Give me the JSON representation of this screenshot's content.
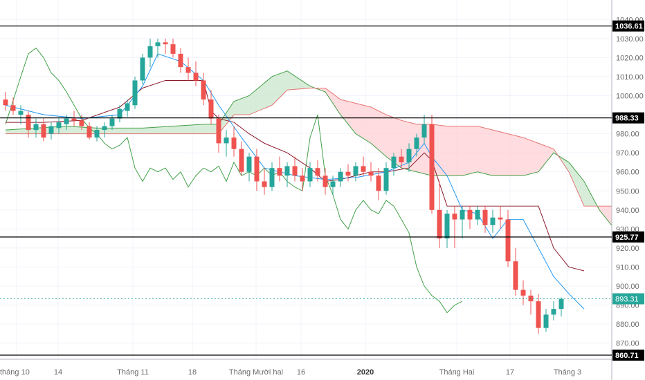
{
  "colors": {
    "up": "#26a69a",
    "down": "#ef5350",
    "conversion_line": "#2196f3",
    "base_line": "#8b1a2b",
    "lagging_span": "#43a047",
    "leading_span_a": "#43a047",
    "leading_span_b": "#e57373",
    "cloud_bull": "#c8e6c9",
    "cloud_bear": "#ffcdd2",
    "horizontal_line": "#000000",
    "current_price": "#26a69a",
    "grid": "#f0f3fa"
  },
  "chart_data": {
    "type": "candlestick",
    "overlays": [
      "ichimoku cloud"
    ],
    "ylim": [
      863,
      1043
    ],
    "y_ticks": [
      870,
      880,
      890,
      900,
      910,
      920,
      930,
      940,
      950,
      960,
      970,
      980,
      990,
      1000,
      1010,
      1020,
      1030,
      1040
    ],
    "y_tick_labels": [
      "870.00",
      "880.00",
      "890.00",
      "900.00",
      "910.00",
      "920.00",
      "930.00",
      "940.00",
      "950.00",
      "960.00",
      "970.00",
      "980.00",
      "990.00",
      "1000.00",
      "1010.00",
      "1020.00",
      "1030.00",
      "1040.00"
    ],
    "x_axis_labels": [
      {
        "label": "tháng 10",
        "bold": false
      },
      {
        "label": "14",
        "bold": false
      },
      {
        "label": "Tháng 11",
        "bold": false
      },
      {
        "label": "18",
        "bold": false
      },
      {
        "label": "Tháng Mười hai",
        "bold": false
      },
      {
        "label": "16",
        "bold": false
      },
      {
        "label": "2020",
        "bold": true
      },
      {
        "label": "Tháng Hai",
        "bold": false
      },
      {
        "label": "17",
        "bold": false
      },
      {
        "label": "Tháng 3",
        "bold": false
      }
    ],
    "horizontal_lines": [
      {
        "value": 1036.61,
        "label": "1036.61"
      },
      {
        "value": 988.33,
        "label": "988.33"
      },
      {
        "value": 925.77,
        "label": "925.77"
      },
      {
        "value": 860.71,
        "label": "860.71"
      }
    ],
    "current_price": {
      "value": 893.31,
      "label": "893.31"
    },
    "candles": [
      [
        998,
        1002,
        992,
        995
      ],
      [
        995,
        999,
        990,
        992
      ],
      [
        990,
        995,
        985,
        992
      ],
      [
        990,
        992,
        978,
        982
      ],
      [
        982,
        988,
        978,
        985
      ],
      [
        985,
        988,
        976,
        978
      ],
      [
        980,
        986,
        977,
        984
      ],
      [
        983,
        988,
        980,
        986
      ],
      [
        985,
        990,
        982,
        988
      ],
      [
        988,
        992,
        984,
        987
      ],
      [
        987,
        990,
        982,
        984
      ],
      [
        984,
        986,
        977,
        978
      ],
      [
        978,
        984,
        976,
        982
      ],
      [
        982,
        986,
        978,
        984
      ],
      [
        984,
        990,
        982,
        988
      ],
      [
        988,
        995,
        986,
        993
      ],
      [
        992,
        998,
        989,
        996
      ],
      [
        995,
        1010,
        993,
        1008
      ],
      [
        1008,
        1022,
        1006,
        1020
      ],
      [
        1020,
        1030,
        1015,
        1026
      ],
      [
        1026,
        1030,
        1020,
        1028
      ],
      [
        1028,
        1030,
        1022,
        1027
      ],
      [
        1027,
        1030,
        1020,
        1022
      ],
      [
        1022,
        1025,
        1012,
        1015
      ],
      [
        1015,
        1020,
        1008,
        1012
      ],
      [
        1012,
        1018,
        1005,
        1008
      ],
      [
        1008,
        1012,
        995,
        998
      ],
      [
        998,
        1003,
        985,
        988
      ],
      [
        988,
        990,
        970,
        975
      ],
      [
        975,
        982,
        968,
        978
      ],
      [
        978,
        984,
        968,
        972
      ],
      [
        972,
        976,
        958,
        960
      ],
      [
        960,
        970,
        955,
        968
      ],
      [
        968,
        972,
        950,
        955
      ],
      [
        955,
        962,
        948,
        952
      ],
      [
        952,
        965,
        950,
        962
      ],
      [
        962,
        968,
        955,
        958
      ],
      [
        958,
        965,
        952,
        963
      ],
      [
        963,
        968,
        955,
        958
      ],
      [
        958,
        962,
        950,
        955
      ],
      [
        955,
        965,
        952,
        962
      ],
      [
        962,
        966,
        955,
        958
      ],
      [
        958,
        962,
        948,
        952
      ],
      [
        952,
        958,
        948,
        955
      ],
      [
        955,
        962,
        952,
        960
      ],
      [
        960,
        964,
        955,
        958
      ],
      [
        958,
        965,
        955,
        963
      ],
      [
        963,
        968,
        958,
        960
      ],
      [
        960,
        965,
        955,
        958
      ],
      [
        958,
        962,
        945,
        950
      ],
      [
        950,
        965,
        948,
        962
      ],
      [
        962,
        970,
        958,
        968
      ],
      [
        968,
        972,
        962,
        965
      ],
      [
        965,
        975,
        960,
        972
      ],
      [
        972,
        980,
        968,
        978
      ],
      [
        978,
        990,
        975,
        985
      ],
      [
        985,
        990,
        938,
        940
      ],
      [
        940,
        955,
        920,
        925
      ],
      [
        925,
        940,
        920,
        938
      ],
      [
        938,
        942,
        920,
        935
      ],
      [
        935,
        942,
        925,
        940
      ],
      [
        940,
        942,
        930,
        935
      ],
      [
        935,
        942,
        932,
        940
      ],
      [
        940,
        942,
        928,
        932
      ],
      [
        932,
        940,
        928,
        936
      ],
      [
        936,
        942,
        930,
        935
      ],
      [
        935,
        940,
        910,
        913
      ],
      [
        913,
        920,
        895,
        898
      ],
      [
        898,
        903,
        890,
        895
      ],
      [
        895,
        898,
        885,
        892
      ],
      [
        892,
        896,
        875,
        878
      ],
      [
        878,
        888,
        876,
        885
      ],
      [
        885,
        892,
        882,
        888
      ],
      [
        888,
        894,
        884,
        893.31
      ]
    ],
    "conversion_line": [
      [
        0,
        995
      ],
      [
        5,
        990
      ],
      [
        10,
        988
      ],
      [
        15,
        990
      ],
      [
        18,
        1005
      ],
      [
        20,
        1022
      ],
      [
        23,
        1018
      ],
      [
        26,
        1008
      ],
      [
        28,
        995
      ],
      [
        31,
        978
      ],
      [
        34,
        962
      ],
      [
        38,
        958
      ],
      [
        42,
        956
      ],
      [
        46,
        957
      ],
      [
        50,
        960
      ],
      [
        53,
        965
      ],
      [
        55,
        975
      ],
      [
        56,
        968
      ],
      [
        58,
        958
      ],
      [
        60,
        940
      ],
      [
        62,
        938
      ],
      [
        64,
        925
      ],
      [
        66,
        935
      ],
      [
        68,
        935
      ],
      [
        70,
        920
      ],
      [
        72,
        905
      ],
      [
        74,
        896
      ],
      [
        76,
        888
      ]
    ],
    "base_line": [
      [
        0,
        986
      ],
      [
        5,
        986
      ],
      [
        10,
        987
      ],
      [
        15,
        994
      ],
      [
        18,
        1004
      ],
      [
        21,
        1008
      ],
      [
        24,
        1008
      ],
      [
        26,
        1008
      ],
      [
        27,
        992
      ],
      [
        28,
        988
      ],
      [
        30,
        986
      ],
      [
        32,
        980
      ],
      [
        34,
        975
      ],
      [
        37,
        970
      ],
      [
        40,
        962
      ],
      [
        42,
        955
      ],
      [
        44,
        956
      ],
      [
        46,
        958
      ],
      [
        48,
        960
      ],
      [
        50,
        960
      ],
      [
        53,
        962
      ],
      [
        55,
        970
      ],
      [
        56,
        966
      ],
      [
        58,
        942
      ],
      [
        60,
        942
      ],
      [
        62,
        942
      ],
      [
        64,
        942
      ],
      [
        66,
        942
      ],
      [
        68,
        942
      ],
      [
        70,
        942
      ],
      [
        72,
        920
      ],
      [
        74,
        910
      ],
      [
        76,
        908
      ]
    ],
    "lagging_span": [
      [
        0,
        985
      ],
      [
        2,
        1010
      ],
      [
        3,
        1022
      ],
      [
        4,
        1025
      ],
      [
        5,
        1020
      ],
      [
        6,
        1012
      ],
      [
        7,
        1008
      ],
      [
        8,
        1002
      ],
      [
        9,
        995
      ],
      [
        10,
        988
      ],
      [
        11,
        983
      ],
      [
        12,
        980
      ],
      [
        13,
        975
      ],
      [
        14,
        972
      ],
      [
        15,
        974
      ],
      [
        16,
        978
      ],
      [
        17,
        962
      ],
      [
        18,
        955
      ],
      [
        19,
        962
      ],
      [
        20,
        960
      ],
      [
        21,
        962
      ],
      [
        22,
        956
      ],
      [
        23,
        960
      ],
      [
        24,
        952
      ],
      [
        25,
        958
      ],
      [
        26,
        962
      ],
      [
        27,
        960
      ],
      [
        28,
        963
      ],
      [
        29,
        955
      ],
      [
        30,
        965
      ],
      [
        31,
        958
      ],
      [
        32,
        960
      ],
      [
        33,
        958
      ],
      [
        34,
        962
      ],
      [
        35,
        958
      ],
      [
        36,
        960
      ],
      [
        37,
        955
      ],
      [
        38,
        952
      ],
      [
        39,
        950
      ],
      [
        40,
        978
      ],
      [
        41,
        990
      ],
      [
        42,
        958
      ],
      [
        43,
        948
      ],
      [
        44,
        935
      ],
      [
        45,
        930
      ],
      [
        46,
        940
      ],
      [
        47,
        945
      ],
      [
        48,
        940
      ],
      [
        49,
        938
      ],
      [
        50,
        945
      ],
      [
        51,
        942
      ],
      [
        52,
        935
      ],
      [
        53,
        928
      ],
      [
        54,
        910
      ],
      [
        55,
        900
      ],
      [
        56,
        895
      ],
      [
        57,
        892
      ],
      [
        58,
        886
      ],
      [
        59,
        890
      ],
      [
        60,
        892
      ]
    ],
    "leading_span_a": [
      [
        0,
        982
      ],
      [
        8,
        984
      ],
      [
        12,
        983
      ],
      [
        18,
        983
      ],
      [
        22,
        984
      ],
      [
        26,
        985
      ],
      [
        28,
        985
      ],
      [
        30,
        997
      ],
      [
        32,
        1000
      ],
      [
        35,
        1010
      ],
      [
        37,
        1013
      ],
      [
        40,
        1005
      ],
      [
        42,
        1002
      ],
      [
        44,
        990
      ],
      [
        46,
        980
      ],
      [
        48,
        975
      ],
      [
        50,
        968
      ],
      [
        52,
        962
      ],
      [
        54,
        960
      ],
      [
        56,
        958
      ],
      [
        58,
        958
      ],
      [
        60,
        958
      ],
      [
        62,
        960
      ],
      [
        64,
        958
      ],
      [
        66,
        958
      ],
      [
        68,
        958
      ],
      [
        70,
        960
      ],
      [
        72,
        970
      ],
      [
        74,
        965
      ],
      [
        76,
        955
      ],
      [
        78,
        940
      ],
      [
        80,
        930
      ],
      [
        82,
        938
      ]
    ],
    "leading_span_b": [
      [
        0,
        980
      ],
      [
        8,
        980
      ],
      [
        12,
        980
      ],
      [
        18,
        980
      ],
      [
        22,
        980
      ],
      [
        26,
        980
      ],
      [
        28,
        980
      ],
      [
        30,
        990
      ],
      [
        32,
        990
      ],
      [
        35,
        995
      ],
      [
        37,
        1003
      ],
      [
        40,
        1004
      ],
      [
        42,
        1004
      ],
      [
        44,
        998
      ],
      [
        46,
        996
      ],
      [
        48,
        994
      ],
      [
        50,
        990
      ],
      [
        52,
        987
      ],
      [
        54,
        985
      ],
      [
        56,
        985
      ],
      [
        58,
        984
      ],
      [
        60,
        984
      ],
      [
        62,
        984
      ],
      [
        64,
        982
      ],
      [
        66,
        980
      ],
      [
        68,
        978
      ],
      [
        70,
        975
      ],
      [
        72,
        972
      ],
      [
        74,
        960
      ],
      [
        76,
        942
      ],
      [
        78,
        942
      ],
      [
        80,
        942
      ],
      [
        82,
        942
      ]
    ]
  }
}
